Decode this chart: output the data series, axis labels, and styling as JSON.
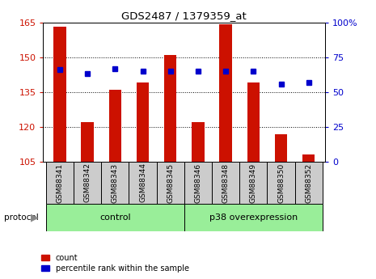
{
  "title": "GDS2487 / 1379359_at",
  "categories": [
    "GSM88341",
    "GSM88342",
    "GSM88343",
    "GSM88344",
    "GSM88345",
    "GSM88346",
    "GSM88348",
    "GSM88349",
    "GSM88350",
    "GSM88352"
  ],
  "count_values": [
    163,
    122,
    136,
    139,
    151,
    122,
    164,
    139,
    117,
    108
  ],
  "percentile_values": [
    66,
    63,
    67,
    65,
    65,
    65,
    65,
    65,
    56,
    57
  ],
  "ylim_left": [
    105,
    165
  ],
  "ylim_right": [
    0,
    100
  ],
  "yticks_left": [
    105,
    120,
    135,
    150,
    165
  ],
  "yticks_right": [
    0,
    25,
    50,
    75,
    100
  ],
  "bar_color": "#cc1100",
  "dot_color": "#0000cc",
  "bar_width": 0.45,
  "grid_color": "black",
  "background_color": "#ffffff",
  "legend_count_label": "count",
  "legend_percentile_label": "percentile rank within the sample",
  "protocol_label": "protocol",
  "left_tick_color": "#cc1100",
  "right_tick_color": "#0000cc",
  "green_color": "#99ee99",
  "gray_color": "#cccccc",
  "control_label": "control",
  "p38_label": "p38 overexpression",
  "control_count": 5,
  "p38_count": 5
}
